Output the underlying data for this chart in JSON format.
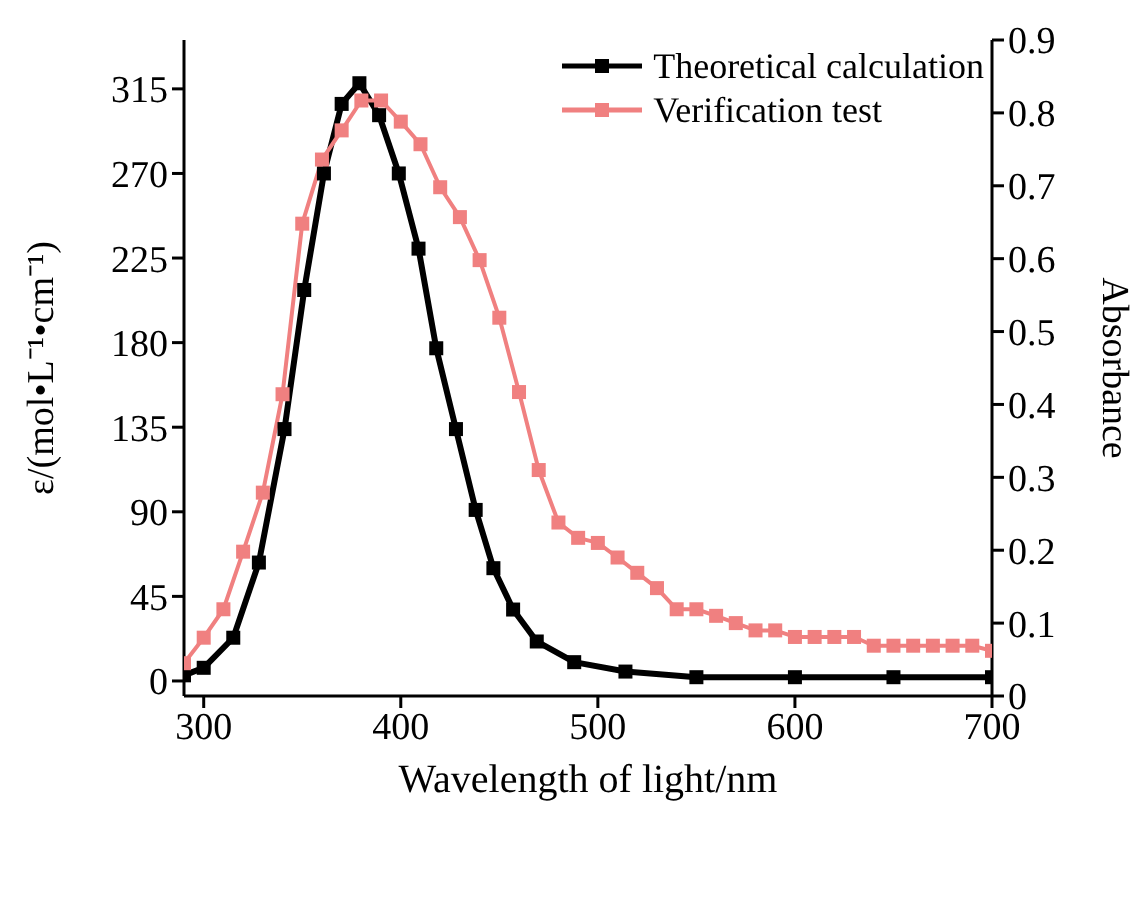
{
  "chart_data": {
    "type": "line",
    "xlabel": "Wavelength of light/nm",
    "ylabel": "ε/(mol•L⁻¹•cm⁻¹)",
    "y2label": "Absorbance",
    "xlim": [
      290,
      700
    ],
    "xticks": [
      300,
      400,
      500,
      600,
      700
    ],
    "ylim": [
      -8,
      341
    ],
    "yticks": [
      0,
      45,
      90,
      135,
      180,
      225,
      270,
      315
    ],
    "y2lim": [
      0,
      0.9
    ],
    "y2ticks": [
      0,
      0.1,
      0.2,
      0.3,
      0.4,
      0.5,
      0.6,
      0.7,
      0.8,
      0.9
    ],
    "legend": "top right",
    "marker": "square",
    "line_style": "solid",
    "grid": false,
    "series": [
      {
        "name": "Theoretical calculation",
        "color": "#000000",
        "x": [
          290,
          300,
          315,
          328,
          341,
          351,
          361,
          370,
          379,
          389,
          399,
          409,
          418,
          428,
          438,
          447,
          457,
          469,
          488,
          514,
          550,
          600,
          650,
          700
        ],
        "values": [
          3,
          7,
          23,
          63,
          134,
          208,
          270,
          307,
          318,
          301,
          270,
          230,
          177,
          134,
          91,
          60,
          38,
          21,
          10,
          5,
          2,
          2,
          2,
          2
        ]
      },
      {
        "name": "Verification test",
        "color": "#f08080",
        "axis": "y2",
        "x": [
          290,
          300,
          310,
          320,
          330,
          340,
          350,
          360,
          370,
          380,
          390,
          400,
          410,
          420,
          430,
          440,
          450,
          460,
          470,
          480,
          490,
          500,
          510,
          520,
          530,
          540,
          550,
          560,
          570,
          580,
          590,
          600,
          610,
          620,
          630,
          640,
          650,
          660,
          670,
          680,
          690,
          700
        ],
        "values": [
          0.045,
          0.08,
          0.119,
          0.198,
          0.279,
          0.414,
          0.648,
          0.736,
          0.776,
          0.817,
          0.817,
          0.788,
          0.757,
          0.698,
          0.657,
          0.598,
          0.519,
          0.417,
          0.31,
          0.238,
          0.217,
          0.21,
          0.19,
          0.169,
          0.148,
          0.119,
          0.119,
          0.11,
          0.1,
          0.09,
          0.09,
          0.081,
          0.081,
          0.081,
          0.081,
          0.069,
          0.069,
          0.069,
          0.069,
          0.069,
          0.069,
          0.062
        ]
      }
    ]
  }
}
